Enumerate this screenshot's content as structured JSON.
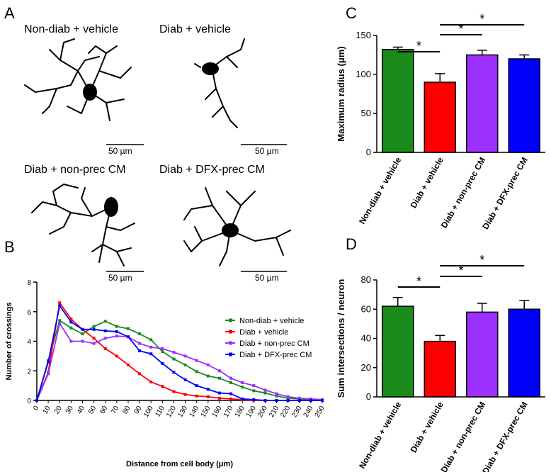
{
  "panel_a": {
    "panel": "A",
    "cells": [
      {
        "label": "Non-diab + vehicle",
        "scale": "50 µm"
      },
      {
        "label": "Diab + vehicle",
        "scale": "50 µm"
      },
      {
        "label": "Diab + non-prec CM",
        "scale": "50 µm"
      },
      {
        "label": "Diab + DFX-prec CM",
        "scale": "50 µm"
      }
    ]
  },
  "chart_data": [
    {
      "type": "line",
      "panel": "B",
      "x": [
        0,
        10,
        20,
        30,
        40,
        50,
        60,
        70,
        80,
        90,
        100,
        110,
        120,
        130,
        140,
        150,
        160,
        170,
        180,
        190,
        200,
        210,
        220,
        230,
        240,
        250
      ],
      "xlim": [
        0,
        250
      ],
      "xticks": [
        0,
        10,
        20,
        30,
        40,
        50,
        60,
        70,
        80,
        90,
        100,
        110,
        120,
        130,
        140,
        150,
        160,
        170,
        180,
        190,
        200,
        210,
        220,
        230,
        240,
        250
      ],
      "ylim": [
        0,
        8
      ],
      "yticks": [
        0,
        2,
        4,
        6,
        8
      ],
      "x_label": "Distance from cell body (μm)",
      "y_label": "Number of crossings",
      "legend": "upper right",
      "series": [
        {
          "name": "Non-diab + vehicle",
          "color": "#1a8a1a",
          "values": [
            0,
            2.7,
            5.4,
            4.9,
            4.5,
            5.0,
            5.35,
            5.0,
            4.85,
            4.5,
            4.1,
            3.3,
            2.8,
            2.4,
            1.95,
            1.65,
            1.5,
            1.2,
            0.9,
            0.65,
            0.5,
            0.3,
            0.15,
            0.1,
            0.05,
            0.05
          ]
        },
        {
          "name": "Diab + vehicle",
          "color": "#ff0000",
          "values": [
            0,
            1.9,
            6.6,
            5.5,
            4.8,
            4.2,
            3.5,
            3.0,
            2.4,
            1.8,
            1.25,
            0.95,
            0.6,
            0.4,
            0.3,
            0.25,
            0.15,
            0.1,
            0.05,
            0.02,
            0,
            0,
            0,
            0,
            0,
            0
          ]
        },
        {
          "name": "Diab + non-prec CM",
          "color": "#9b30ff",
          "values": [
            0,
            1.8,
            5.2,
            4.0,
            4.0,
            3.85,
            4.2,
            4.35,
            4.3,
            3.85,
            3.6,
            3.5,
            3.25,
            3.0,
            2.7,
            2.4,
            2.0,
            1.5,
            1.2,
            1.0,
            0.7,
            0.45,
            0.25,
            0.15,
            0.1,
            0.05
          ]
        },
        {
          "name": "Diab + DFX-prec CM",
          "color": "#0000ff",
          "values": [
            0,
            2.6,
            6.4,
            5.3,
            4.8,
            4.8,
            4.7,
            4.65,
            4.3,
            3.35,
            3.15,
            2.5,
            1.9,
            1.4,
            1.0,
            0.75,
            0.5,
            0.45,
            0.1,
            0.05,
            0,
            0,
            0,
            0,
            0,
            0
          ]
        }
      ]
    },
    {
      "type": "bar",
      "panel": "C",
      "categories": [
        "Non-diab + vehicle",
        "Diab + vehicle",
        "Diab + non-prec CM",
        "Diab + DFX-prec CM"
      ],
      "values": [
        132,
        90,
        125,
        120
      ],
      "errors": [
        3,
        11,
        6,
        5
      ],
      "colors": [
        "#1a8a1a",
        "#ff0000",
        "#9b30ff",
        "#0000ff"
      ],
      "ylim": [
        0,
        150
      ],
      "yticks": [
        0,
        50,
        100,
        150
      ],
      "y_label": "Maximum radius (μm)",
      "annotations": [
        {
          "text": "*",
          "between": [
            "Non-diab + vehicle",
            "Diab + vehicle"
          ]
        },
        {
          "text": "*",
          "between": [
            "Diab + vehicle",
            "Diab + non-prec CM"
          ]
        },
        {
          "text": "*",
          "between": [
            "Diab + vehicle",
            "Diab + DFX-prec CM"
          ]
        }
      ]
    },
    {
      "type": "bar",
      "panel": "D",
      "categories": [
        "Non-diab + vehicle",
        "Diab + vehicle",
        "Diab + non-prec CM",
        "Diab + DFX-prec CM"
      ],
      "values": [
        62,
        38,
        58,
        60
      ],
      "errors": [
        6,
        4,
        6,
        6
      ],
      "colors": [
        "#1a8a1a",
        "#ff0000",
        "#9b30ff",
        "#0000ff"
      ],
      "ylim": [
        0,
        80
      ],
      "yticks": [
        0,
        20,
        40,
        60,
        80
      ],
      "y_label": "Sum intersections / neuron",
      "annotations": [
        {
          "text": "*",
          "between": [
            "Non-diab + vehicle",
            "Diab + vehicle"
          ]
        },
        {
          "text": "*",
          "between": [
            "Diab + vehicle",
            "Diab + non-prec CM"
          ]
        },
        {
          "text": "*",
          "between": [
            "Diab + vehicle",
            "Diab + DFX-prec CM"
          ]
        }
      ]
    }
  ]
}
